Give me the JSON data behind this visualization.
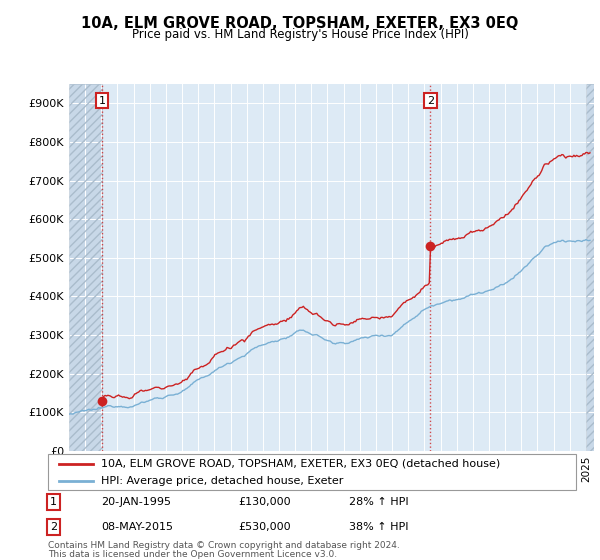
{
  "title": "10A, ELM GROVE ROAD, TOPSHAM, EXETER, EX3 0EQ",
  "subtitle": "Price paid vs. HM Land Registry's House Price Index (HPI)",
  "legend_label1": "10A, ELM GROVE ROAD, TOPSHAM, EXETER, EX3 0EQ (detached house)",
  "legend_label2": "HPI: Average price, detached house, Exeter",
  "sale1_label": "1",
  "sale2_label": "2",
  "sale1_date": "20-JAN-1995",
  "sale1_price": 130000,
  "sale1_hpi_text": "28% ↑ HPI",
  "sale2_date": "08-MAY-2015",
  "sale2_price": 530000,
  "sale2_hpi_text": "38% ↑ HPI",
  "footnote_line1": "Contains HM Land Registry data © Crown copyright and database right 2024.",
  "footnote_line2": "This data is licensed under the Open Government Licence v3.0.",
  "line_color_property": "#cc2222",
  "line_color_hpi": "#7ab0d4",
  "sale_marker_color": "#cc2222",
  "vline_color": "#cc2222",
  "bg_plot": "#ddeaf5",
  "bg_hatch_color": "#c8d4e0",
  "grid_color": "#ffffff",
  "ylim_max": 950000,
  "ylim_min": 0,
  "xlim_start": 1993.0,
  "xlim_end": 2025.5,
  "sale1_t": 1995.05,
  "sale2_t": 2015.37
}
